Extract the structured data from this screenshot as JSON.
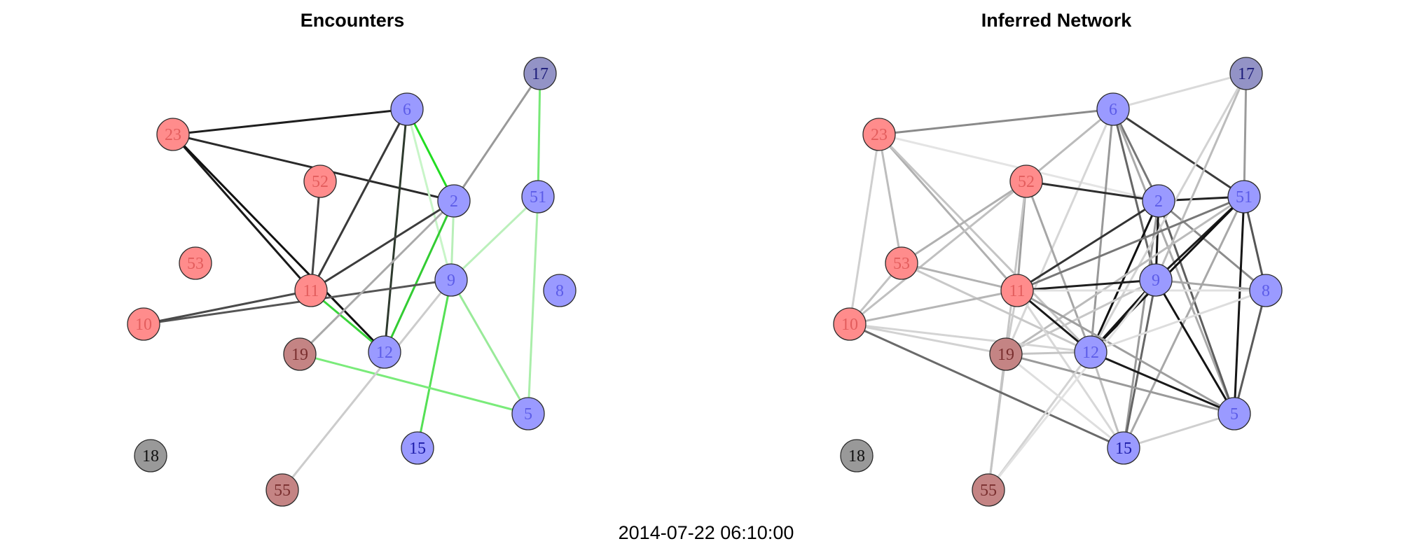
{
  "timestamp": "2014-07-22 06:10:00",
  "node_colors": {
    "red": "#ff8c8c",
    "blue": "#9a9aff",
    "gray": "#999999",
    "brown": "#c48484",
    "purple": "#9393c6"
  },
  "label_colors": {
    "red": "#e35d5d",
    "blue": "#5c5ce8",
    "gray": "#111111",
    "brown": "#7a2f2f",
    "purple": "#1c1c7a",
    "dark_blue": "#1a1aa8"
  },
  "nodes": [
    {
      "id": "23",
      "group": "red"
    },
    {
      "id": "52",
      "group": "red"
    },
    {
      "id": "53",
      "group": "red"
    },
    {
      "id": "11",
      "group": "red"
    },
    {
      "id": "10",
      "group": "red"
    },
    {
      "id": "19",
      "group": "brown"
    },
    {
      "id": "55",
      "group": "brown"
    },
    {
      "id": "18",
      "group": "gray"
    },
    {
      "id": "6",
      "group": "blue"
    },
    {
      "id": "2",
      "group": "blue"
    },
    {
      "id": "9",
      "group": "blue"
    },
    {
      "id": "12",
      "group": "blue"
    },
    {
      "id": "15",
      "group": "blue"
    },
    {
      "id": "5",
      "group": "blue"
    },
    {
      "id": "8",
      "group": "blue"
    },
    {
      "id": "51",
      "group": "blue"
    },
    {
      "id": "17",
      "group": "purple"
    }
  ],
  "panels": [
    {
      "title": "Encounters",
      "edges": [
        {
          "from": "23",
          "to": "6",
          "color": "#1e1e1e"
        },
        {
          "from": "23",
          "to": "2",
          "color": "#2a2a2a"
        },
        {
          "from": "23",
          "to": "11",
          "color": "#1a1a1a"
        },
        {
          "from": "23",
          "to": "12",
          "color": "#111111"
        },
        {
          "from": "52",
          "to": "11",
          "color": "#444444"
        },
        {
          "from": "6",
          "to": "11",
          "color": "#3a3a3a"
        },
        {
          "from": "6",
          "to": "12",
          "color": "#2e3a2e"
        },
        {
          "from": "6",
          "to": "2",
          "color": "#22dd22"
        },
        {
          "from": "6",
          "to": "9",
          "color": "#c8f5c8"
        },
        {
          "from": "2",
          "to": "11",
          "color": "#3c3c3c"
        },
        {
          "from": "2",
          "to": "12",
          "color": "#33cc33"
        },
        {
          "from": "2",
          "to": "9",
          "color": "#b8efb8"
        },
        {
          "from": "17",
          "to": "2",
          "color": "#999999"
        },
        {
          "from": "17",
          "to": "51",
          "color": "#77e877"
        },
        {
          "from": "51",
          "to": "5",
          "color": "#aaeeaa"
        },
        {
          "from": "51",
          "to": "9",
          "color": "#bbf0bb"
        },
        {
          "from": "9",
          "to": "10",
          "color": "#555555"
        },
        {
          "from": "11",
          "to": "10",
          "color": "#4a4a4a"
        },
        {
          "from": "9",
          "to": "15",
          "color": "#55e055"
        },
        {
          "from": "9",
          "to": "5",
          "color": "#99ea99"
        },
        {
          "from": "11",
          "to": "12",
          "color": "#3ad43a"
        },
        {
          "from": "19",
          "to": "5",
          "color": "#7aeb7a"
        },
        {
          "from": "19",
          "to": "2",
          "color": "#aaaaaa"
        },
        {
          "from": "55",
          "to": "9",
          "color": "#cccccc"
        }
      ]
    },
    {
      "title": "Inferred Network",
      "edges": [
        {
          "from": "23",
          "to": "6",
          "color": "#8a8a8a"
        },
        {
          "from": "23",
          "to": "53",
          "color": "#bdbdbd"
        },
        {
          "from": "23",
          "to": "10",
          "color": "#cfcfcf"
        },
        {
          "from": "23",
          "to": "11",
          "color": "#b0b0b0"
        },
        {
          "from": "23",
          "to": "12",
          "color": "#c4c4c4"
        },
        {
          "from": "23",
          "to": "2",
          "color": "#e4e4e4"
        },
        {
          "from": "6",
          "to": "17",
          "color": "#dadada"
        },
        {
          "from": "6",
          "to": "52",
          "color": "#bbbbbb"
        },
        {
          "from": "6",
          "to": "51",
          "color": "#3c3c3c"
        },
        {
          "from": "6",
          "to": "2",
          "color": "#777777"
        },
        {
          "from": "6",
          "to": "9",
          "color": "#666666"
        },
        {
          "from": "6",
          "to": "12",
          "color": "#999999"
        },
        {
          "from": "6",
          "to": "5",
          "color": "#aaaaaa"
        },
        {
          "from": "6",
          "to": "19",
          "color": "#d6d6d6"
        },
        {
          "from": "52",
          "to": "2",
          "color": "#2e2e2e"
        },
        {
          "from": "52",
          "to": "11",
          "color": "#a0a0a0"
        },
        {
          "from": "52",
          "to": "53",
          "color": "#b0b0b0"
        },
        {
          "from": "52",
          "to": "10",
          "color": "#c0c0c0"
        },
        {
          "from": "52",
          "to": "55",
          "color": "#c6c6c6"
        },
        {
          "from": "52",
          "to": "12",
          "color": "#a6a6a6"
        },
        {
          "from": "53",
          "to": "11",
          "color": "#b2b2b2"
        },
        {
          "from": "53",
          "to": "10",
          "color": "#c2c2c2"
        },
        {
          "from": "53",
          "to": "12",
          "color": "#c8c8c8"
        },
        {
          "from": "2",
          "to": "51",
          "color": "#222222"
        },
        {
          "from": "2",
          "to": "11",
          "color": "#333333"
        },
        {
          "from": "2",
          "to": "12",
          "color": "#111111"
        },
        {
          "from": "2",
          "to": "9",
          "color": "#111111"
        },
        {
          "from": "2",
          "to": "8",
          "color": "#8c8c8c"
        },
        {
          "from": "2",
          "to": "5",
          "color": "#5e5e5e"
        },
        {
          "from": "2",
          "to": "15",
          "color": "#9a9a9a"
        },
        {
          "from": "17",
          "to": "51",
          "color": "#9b9b9b"
        },
        {
          "from": "17",
          "to": "9",
          "color": "#bcbcbc"
        },
        {
          "from": "17",
          "to": "12",
          "color": "#d2d2d2"
        },
        {
          "from": "51",
          "to": "11",
          "color": "#777777"
        },
        {
          "from": "51",
          "to": "9",
          "color": "#1c1c1c"
        },
        {
          "from": "51",
          "to": "12",
          "color": "#111111"
        },
        {
          "from": "51",
          "to": "8",
          "color": "#555555"
        },
        {
          "from": "51",
          "to": "5",
          "color": "#161616"
        },
        {
          "from": "51",
          "to": "19",
          "color": "#bbbbbb"
        },
        {
          "from": "51",
          "to": "15",
          "color": "#a8a8a8"
        },
        {
          "from": "9",
          "to": "11",
          "color": "#1e1e1e"
        },
        {
          "from": "9",
          "to": "12",
          "color": "#151515"
        },
        {
          "from": "9",
          "to": "5",
          "color": "#141414"
        },
        {
          "from": "9",
          "to": "15",
          "color": "#666666"
        },
        {
          "from": "9",
          "to": "8",
          "color": "#a6a6a6"
        },
        {
          "from": "9",
          "to": "19",
          "color": "#c7c7c7"
        },
        {
          "from": "11",
          "to": "12",
          "color": "#1a1a1a"
        },
        {
          "from": "11",
          "to": "10",
          "color": "#b6b6b6"
        },
        {
          "from": "11",
          "to": "5",
          "color": "#9e9e9e"
        },
        {
          "from": "11",
          "to": "15",
          "color": "#d8d8d8"
        },
        {
          "from": "11",
          "to": "19",
          "color": "#cccccc"
        },
        {
          "from": "12",
          "to": "5",
          "color": "#1a1a1a"
        },
        {
          "from": "12",
          "to": "15",
          "color": "#c0c0c0"
        },
        {
          "from": "12",
          "to": "19",
          "color": "#c5c5c5"
        },
        {
          "from": "12",
          "to": "10",
          "color": "#d4d4d4"
        },
        {
          "from": "8",
          "to": "5",
          "color": "#5a5a5a"
        },
        {
          "from": "8",
          "to": "11",
          "color": "#e0e0e0"
        },
        {
          "from": "8",
          "to": "12",
          "color": "#dddddd"
        },
        {
          "from": "19",
          "to": "5",
          "color": "#9a9a9a"
        },
        {
          "from": "19",
          "to": "55",
          "color": "#c4c4c4"
        },
        {
          "from": "10",
          "to": "15",
          "color": "#6a6a6a"
        },
        {
          "from": "10",
          "to": "19",
          "color": "#d2d2d2"
        },
        {
          "from": "15",
          "to": "5",
          "color": "#cfcfcf"
        },
        {
          "from": "55",
          "to": "12",
          "color": "#d3d3d3"
        },
        {
          "from": "55",
          "to": "9",
          "color": "#e2e2e2"
        },
        {
          "from": "15",
          "to": "19",
          "color": "#dedede"
        }
      ]
    }
  ]
}
